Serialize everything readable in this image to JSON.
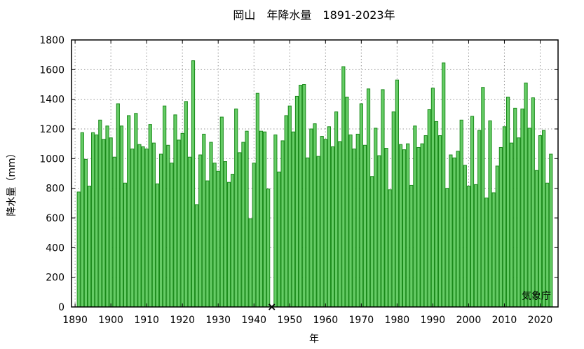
{
  "chart_data": {
    "type": "bar",
    "title": "岡山　年降水量　1891-2023年",
    "xlabel": "年",
    "ylabel": "降水量（mm）",
    "credit": "気象庁",
    "ylim": [
      0,
      1800
    ],
    "xlim": [
      1889,
      2025
    ],
    "y_ticks": [
      "0",
      "200",
      "400",
      "600",
      "800",
      "1000",
      "1200",
      "1400",
      "1600",
      "1800"
    ],
    "x_ticks": [
      "1890",
      "1900",
      "1910",
      "1920",
      "1930",
      "1940",
      "1950",
      "1960",
      "1970",
      "1980",
      "1990",
      "2000",
      "2010",
      "2020"
    ],
    "grid": true,
    "missing_years": [
      1945
    ],
    "missing_marker": "×",
    "x": [
      1891,
      1892,
      1893,
      1894,
      1895,
      1896,
      1897,
      1898,
      1899,
      1900,
      1901,
      1902,
      1903,
      1904,
      1905,
      1906,
      1907,
      1908,
      1909,
      1910,
      1911,
      1912,
      1913,
      1914,
      1915,
      1916,
      1917,
      1918,
      1919,
      1920,
      1921,
      1922,
      1923,
      1924,
      1925,
      1926,
      1927,
      1928,
      1929,
      1930,
      1931,
      1932,
      1933,
      1934,
      1935,
      1936,
      1937,
      1938,
      1939,
      1940,
      1941,
      1942,
      1943,
      1944,
      1946,
      1947,
      1948,
      1949,
      1950,
      1951,
      1952,
      1953,
      1954,
      1955,
      1956,
      1957,
      1958,
      1959,
      1960,
      1961,
      1962,
      1963,
      1964,
      1965,
      1966,
      1967,
      1968,
      1969,
      1970,
      1971,
      1972,
      1973,
      1974,
      1975,
      1976,
      1977,
      1978,
      1979,
      1980,
      1981,
      1982,
      1983,
      1984,
      1985,
      1986,
      1987,
      1988,
      1989,
      1990,
      1991,
      1992,
      1993,
      1994,
      1995,
      1996,
      1997,
      1998,
      1999,
      2000,
      2001,
      2002,
      2003,
      2004,
      2005,
      2006,
      2007,
      2008,
      2009,
      2010,
      2011,
      2012,
      2013,
      2014,
      2015,
      2016,
      2017,
      2018,
      2019,
      2020,
      2021,
      2022,
      2023
    ],
    "values": [
      775,
      1175,
      995,
      815,
      1175,
      1160,
      1260,
      1130,
      1220,
      1140,
      1010,
      1370,
      1220,
      835,
      1290,
      1065,
      1305,
      1095,
      1080,
      1065,
      1230,
      1105,
      830,
      1030,
      1355,
      1090,
      970,
      1295,
      1125,
      1170,
      1385,
      1010,
      1660,
      690,
      1025,
      1165,
      850,
      1110,
      970,
      915,
      1280,
      980,
      840,
      895,
      1335,
      1040,
      1110,
      1185,
      595,
      970,
      1440,
      1185,
      1180,
      795,
      1160,
      910,
      1120,
      1290,
      1355,
      1180,
      1420,
      1495,
      1500,
      1005,
      1200,
      1235,
      1015,
      1150,
      1130,
      1215,
      1080,
      1315,
      1115,
      1620,
      1415,
      1160,
      1065,
      1165,
      1370,
      1090,
      1470,
      880,
      1205,
      1020,
      1465,
      1070,
      790,
      1315,
      1530,
      1095,
      1060,
      1100,
      820,
      1220,
      1075,
      1100,
      1155,
      1330,
      1475,
      1250,
      1155,
      1645,
      800,
      1025,
      1005,
      1050,
      1260,
      955,
      815,
      1285,
      825,
      1190,
      1480,
      735,
      1255,
      770,
      950,
      1075,
      1215,
      1415,
      1105,
      1340,
      1140,
      1335,
      1510,
      1205,
      1410,
      920,
      1155,
      1190,
      835,
      1030
    ]
  }
}
